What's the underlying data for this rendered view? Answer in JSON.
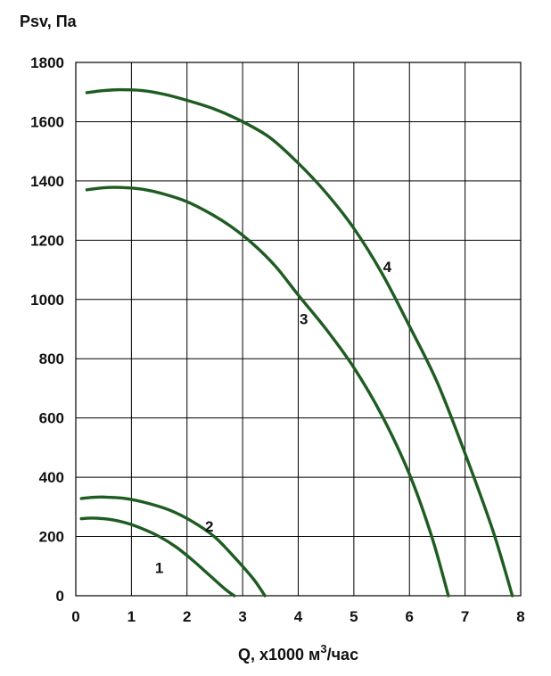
{
  "chart_data": {
    "type": "line",
    "ylabel": "Psv, Па",
    "xlabel_prefix": "Q, x1000 м",
    "xlabel_superscript": "3",
    "xlabel_suffix": "/час",
    "xlim": [
      0,
      8
    ],
    "ylim": [
      0,
      1800
    ],
    "x_ticks": [
      "0",
      "1",
      "2",
      "3",
      "4",
      "5",
      "6",
      "7",
      "8"
    ],
    "y_ticks": [
      "0",
      "200",
      "400",
      "600",
      "800",
      "1000",
      "1200",
      "1400",
      "1600",
      "1800"
    ],
    "grid": true,
    "curve_color": "#1e5c22",
    "series": [
      {
        "name": "1",
        "x": [
          0.1,
          0.3,
          0.6,
          0.9,
          1.2,
          1.5,
          1.8,
          2.1,
          2.4,
          2.7,
          2.85
        ],
        "y": [
          260,
          262,
          258,
          246,
          226,
          200,
          165,
          120,
          70,
          20,
          0
        ],
        "label_at": [
          1.5,
          95
        ]
      },
      {
        "name": "2",
        "x": [
          0.1,
          0.3,
          0.5,
          0.9,
          1.3,
          1.7,
          2.1,
          2.5,
          2.9,
          3.2,
          3.4
        ],
        "y": [
          328,
          332,
          333,
          328,
          312,
          288,
          250,
          198,
          120,
          55,
          0
        ],
        "label_at": [
          2.4,
          235
        ]
      },
      {
        "name": "3",
        "x": [
          0.2,
          0.5,
          0.8,
          1.2,
          1.6,
          2.0,
          2.4,
          2.8,
          3.2,
          3.6,
          4.0,
          4.5,
          5.0,
          5.5,
          6.0,
          6.4,
          6.7
        ],
        "y": [
          1370,
          1377,
          1378,
          1372,
          1355,
          1330,
          1292,
          1245,
          1185,
          1110,
          1015,
          900,
          770,
          610,
          410,
          200,
          0
        ],
        "label_at": [
          4.1,
          935
        ]
      },
      {
        "name": "4",
        "x": [
          0.2,
          0.5,
          0.8,
          1.2,
          1.6,
          2.0,
          2.5,
          3.0,
          3.5,
          4.0,
          4.5,
          5.0,
          5.5,
          6.0,
          6.5,
          7.0,
          7.5,
          7.85
        ],
        "y": [
          1698,
          1705,
          1708,
          1705,
          1692,
          1672,
          1642,
          1600,
          1545,
          1460,
          1360,
          1240,
          1090,
          910,
          720,
          480,
          220,
          0
        ],
        "label_at": [
          5.6,
          1110
        ]
      }
    ]
  }
}
